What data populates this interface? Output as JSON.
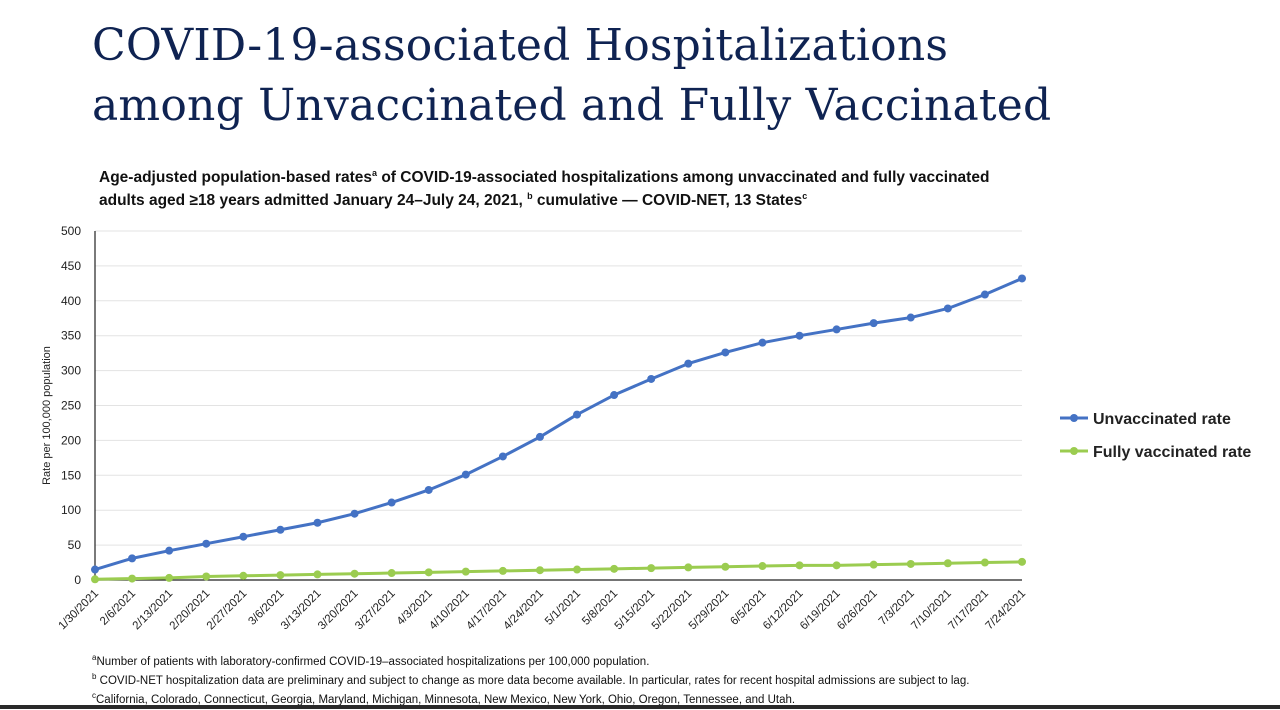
{
  "slide": {
    "title_line1": "COVID-19-associated Hospitalizations",
    "title_line2": "among Unvaccinated and Fully Vaccinated"
  },
  "chart_title": {
    "line1": "Age-adjusted population-based rates",
    "line1_sup": "a",
    "line1_rest": " of COVID-19-associated hospitalizations among unvaccinated and fully vaccinated",
    "line2": "adults aged ≥18 years admitted January 24–July 24, 2021, ",
    "line2_sup1": "b",
    "line2_rest": " cumulative — COVID-NET, 13 States",
    "line2_sup2": "c"
  },
  "chart_data": {
    "type": "line",
    "ylabel": "Rate per 100,000 population",
    "xlabel": "",
    "ylim": [
      0,
      500
    ],
    "yticks": [
      0,
      50,
      100,
      150,
      200,
      250,
      300,
      350,
      400,
      450,
      500
    ],
    "grid": true,
    "legend_position": "right",
    "x": [
      "1/30/2021",
      "2/6/2021",
      "2/13/2021",
      "2/20/2021",
      "2/27/2021",
      "3/6/2021",
      "3/13/2021",
      "3/20/2021",
      "3/27/2021",
      "4/3/2021",
      "4/10/2021",
      "4/17/2021",
      "4/24/2021",
      "5/1/2021",
      "5/8/2021",
      "5/15/2021",
      "5/22/2021",
      "5/29/2021",
      "6/5/2021",
      "6/12/2021",
      "6/19/2021",
      "6/26/2021",
      "7/3/2021",
      "7/10/2021",
      "7/17/2021",
      "7/24/2021"
    ],
    "series": [
      {
        "name": "Unvaccinated rate",
        "color": "#4472c4",
        "values": [
          15,
          31,
          42,
          52,
          62,
          72,
          82,
          95,
          111,
          129,
          151,
          177,
          205,
          237,
          265,
          288,
          310,
          326,
          340,
          350,
          359,
          368,
          376,
          389,
          409,
          432
        ]
      },
      {
        "name": "Fully vaccinated rate",
        "color": "#9bcc50",
        "values": [
          1,
          2,
          3,
          5,
          6,
          7,
          8,
          9,
          10,
          11,
          12,
          13,
          14,
          15,
          16,
          17,
          18,
          19,
          20,
          21,
          21,
          22,
          23,
          24,
          25,
          26
        ]
      }
    ]
  },
  "footnotes": {
    "a_mark": "a",
    "a": "Number of patients with laboratory-confirmed COVID-19–associated hospitalizations per 100,000 population.",
    "b_mark": "b",
    "b": " COVID-NET hospitalization data are preliminary and subject to change as more data become available. In particular, rates for recent hospital admissions are subject to lag.",
    "c_mark": "c",
    "c": "California, Colorado, Connecticut, Georgia, Maryland, Michigan, Minnesota, New Mexico, New York, Ohio, Oregon, Tennessee, and Utah."
  }
}
